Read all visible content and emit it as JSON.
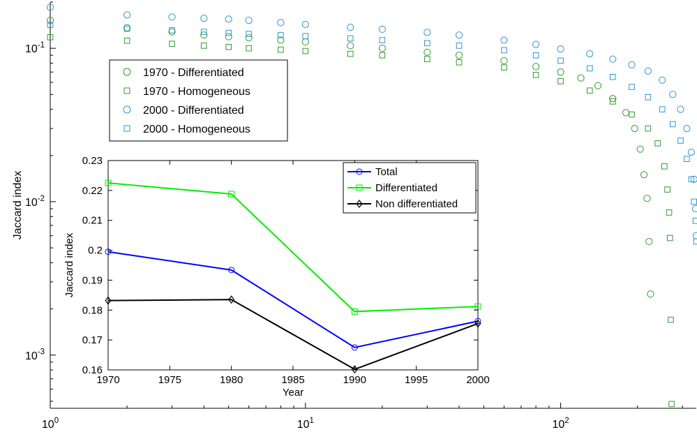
{
  "chart_data": [
    {
      "type": "scatter",
      "title": "",
      "xlabel": "",
      "ylabel": "Jaccard index",
      "xscale": "log",
      "yscale": "log",
      "xlim": [
        1,
        340
      ],
      "ylim": [
        0.00045,
        0.2
      ],
      "x_ticks": [
        {
          "value": 1,
          "base": "10",
          "exp": "0"
        },
        {
          "value": 10,
          "base": "10",
          "exp": "1"
        },
        {
          "value": 100,
          "base": "10",
          "exp": "2"
        }
      ],
      "y_ticks": [
        {
          "value": 0.001,
          "base": "10",
          "exp": "-3"
        },
        {
          "value": 0.01,
          "base": "10",
          "exp": "-2"
        },
        {
          "value": 0.1,
          "base": "10",
          "exp": "-1"
        }
      ],
      "grid": false,
      "legend_position": "top-left",
      "series": [
        {
          "name": "1970 - Differentiated",
          "marker": "circle",
          "color": "#2e9b2e",
          "points": [
            [
              1,
              0.152
            ],
            [
              2,
              0.136
            ],
            [
              3,
              0.128
            ],
            [
              4,
              0.122
            ],
            [
              5,
              0.119
            ],
            [
              6,
              0.117
            ],
            [
              8,
              0.113
            ],
            [
              10,
              0.11
            ],
            [
              15,
              0.104
            ],
            [
              20,
              0.1
            ],
            [
              30,
              0.094
            ],
            [
              40,
              0.09
            ],
            [
              60,
              0.083
            ],
            [
              80,
              0.076
            ],
            [
              100,
              0.07
            ],
            [
              120,
              0.064
            ],
            [
              140,
              0.057
            ],
            [
              160,
              0.047
            ],
            [
              180,
              0.038
            ],
            [
              195,
              0.03
            ],
            [
              205,
              0.022
            ],
            [
              212,
              0.015
            ],
            [
              218,
              0.0105
            ],
            [
              222,
              0.0055
            ],
            [
              225,
              0.0025
            ]
          ]
        },
        {
          "name": "1970 - Homogeneous",
          "marker": "square",
          "color": "#2e9b2e",
          "points": [
            [
              1,
              0.118
            ],
            [
              2,
              0.112
            ],
            [
              3,
              0.107
            ],
            [
              4,
              0.104
            ],
            [
              5,
              0.102
            ],
            [
              6,
              0.1
            ],
            [
              8,
              0.098
            ],
            [
              10,
              0.096
            ],
            [
              15,
              0.092
            ],
            [
              20,
              0.09
            ],
            [
              30,
              0.085
            ],
            [
              40,
              0.081
            ],
            [
              60,
              0.075
            ],
            [
              80,
              0.067
            ],
            [
              100,
              0.061
            ],
            [
              130,
              0.053
            ],
            [
              160,
              0.045
            ],
            [
              190,
              0.037
            ],
            [
              220,
              0.03
            ],
            [
              240,
              0.024
            ],
            [
              255,
              0.017
            ],
            [
              262,
              0.012
            ],
            [
              266,
              0.0085
            ],
            [
              268,
              0.0058
            ],
            [
              270,
              0.0017
            ],
            [
              272,
              0.00048
            ]
          ]
        },
        {
          "name": "2000 - Differentiated",
          "marker": "circle",
          "color": "#2a95d5",
          "points": [
            [
              1,
              0.185
            ],
            [
              2,
              0.165
            ],
            [
              3,
              0.16
            ],
            [
              4,
              0.157
            ],
            [
              5,
              0.155
            ],
            [
              6,
              0.152
            ],
            [
              8,
              0.147
            ],
            [
              10,
              0.143
            ],
            [
              15,
              0.137
            ],
            [
              20,
              0.133
            ],
            [
              30,
              0.127
            ],
            [
              40,
              0.122
            ],
            [
              60,
              0.113
            ],
            [
              80,
              0.106
            ],
            [
              100,
              0.099
            ],
            [
              130,
              0.092
            ],
            [
              160,
              0.085
            ],
            [
              190,
              0.078
            ],
            [
              220,
              0.071
            ],
            [
              250,
              0.062
            ],
            [
              275,
              0.05
            ],
            [
              295,
              0.04
            ],
            [
              312,
              0.03
            ],
            [
              325,
              0.021
            ],
            [
              333,
              0.014
            ],
            [
              338,
              0.009
            ],
            [
              340,
              0.006
            ]
          ]
        },
        {
          "name": "2000 - Homogeneous",
          "marker": "square",
          "color": "#2a95d5",
          "points": [
            [
              1,
              0.142
            ],
            [
              2,
              0.134
            ],
            [
              3,
              0.131
            ],
            [
              4,
              0.128
            ],
            [
              5,
              0.126
            ],
            [
              6,
              0.124
            ],
            [
              8,
              0.122
            ],
            [
              10,
              0.12
            ],
            [
              15,
              0.116
            ],
            [
              20,
              0.113
            ],
            [
              30,
              0.108
            ],
            [
              40,
              0.104
            ],
            [
              60,
              0.097
            ],
            [
              80,
              0.09
            ],
            [
              100,
              0.083
            ],
            [
              130,
              0.074
            ],
            [
              160,
              0.065
            ],
            [
              190,
              0.056
            ],
            [
              220,
              0.048
            ],
            [
              250,
              0.04
            ],
            [
              275,
              0.032
            ],
            [
              295,
              0.025
            ],
            [
              312,
              0.019
            ],
            [
              325,
              0.014
            ],
            [
              333,
              0.01
            ],
            [
              338,
              0.0075
            ],
            [
              340,
              0.0055
            ]
          ]
        }
      ]
    },
    {
      "type": "line",
      "title": "",
      "xlabel": "Year",
      "ylabel": "Jaccard index",
      "x": [
        1970,
        1980,
        1990,
        2000
      ],
      "xlim": [
        1970,
        2000
      ],
      "ylim": [
        0.16,
        0.23
      ],
      "x_ticks": [
        1970,
        1975,
        1980,
        1985,
        1990,
        1995,
        2000
      ],
      "y_ticks": [
        0.16,
        0.17,
        0.18,
        0.19,
        0.2,
        0.21,
        0.22,
        0.23
      ],
      "y_tick_labels": [
        "0.16",
        "0.17",
        "0.18",
        "0.19",
        "0.2",
        "0.21",
        "0.22",
        "0.23"
      ],
      "grid": false,
      "legend_position": "top-right",
      "series": [
        {
          "name": "Total",
          "marker": "circle",
          "color": "#0000ff",
          "values": [
            0.1995,
            0.1934,
            0.1675,
            0.1763
          ]
        },
        {
          "name": "Differentiated",
          "marker": "square",
          "color": "#00ee00",
          "values": [
            0.2225,
            0.2188,
            0.1795,
            0.1812
          ]
        },
        {
          "name": "Non differentiated",
          "marker": "diamond",
          "color": "#000000",
          "values": [
            0.1832,
            0.1835,
            0.1602,
            0.1755
          ]
        }
      ]
    }
  ]
}
